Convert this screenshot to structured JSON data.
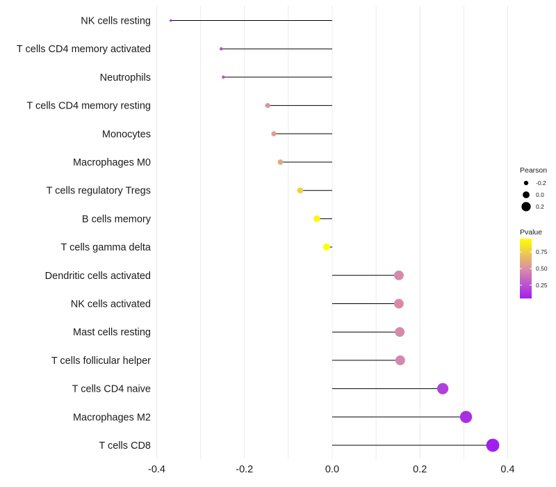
{
  "chart_data": {
    "type": "lollipop",
    "orientation": "horizontal",
    "title": "",
    "xlabel": "",
    "ylabel": "",
    "xlim": [
      -0.42,
      0.42
    ],
    "xticks": [
      -0.4,
      -0.2,
      0.0,
      0.2,
      0.4
    ],
    "xtick_labels": [
      "-0.4",
      "-0.2",
      "0.0",
      "0.2",
      "0.4"
    ],
    "grid": "vertical",
    "categories": [
      "NK cells resting",
      "T cells CD4 memory activated",
      "Neutrophils",
      "T cells CD4 memory resting",
      "Monocytes",
      "Macrophages M0",
      "T cells regulatory  Tregs",
      "B cells memory",
      "T cells gamma delta",
      "Dendritic cells activated",
      "NK cells activated",
      "Mast cells resting",
      "T cells follicular helper",
      "T cells CD4 naive",
      "Macrophages M2",
      "T cells CD8"
    ],
    "pearson": [
      -0.368,
      -0.253,
      -0.248,
      -0.147,
      -0.133,
      -0.118,
      -0.073,
      -0.035,
      -0.013,
      0.152,
      0.152,
      0.154,
      0.155,
      0.252,
      0.305,
      0.366
    ],
    "pvalue": [
      0.05,
      0.25,
      0.28,
      0.52,
      0.56,
      0.6,
      0.76,
      0.92,
      0.98,
      0.48,
      0.48,
      0.48,
      0.47,
      0.18,
      0.12,
      0.05
    ],
    "legend": {
      "position": "right",
      "size_title": "Pearson",
      "size_values": [
        -0.2,
        0.0,
        0.2
      ],
      "size_labels": [
        "-0.2",
        "0.0",
        "0.2"
      ],
      "color_title": "Pvalue",
      "color_range": [
        0.05,
        0.95
      ],
      "color_ticks": [
        0.25,
        0.5,
        0.75
      ],
      "color_tick_labels": [
        "0.25",
        "0.50",
        "0.75"
      ],
      "color_low": "#a020f0",
      "color_mid": "#d98fa6",
      "color_high": "#ffff00"
    }
  }
}
